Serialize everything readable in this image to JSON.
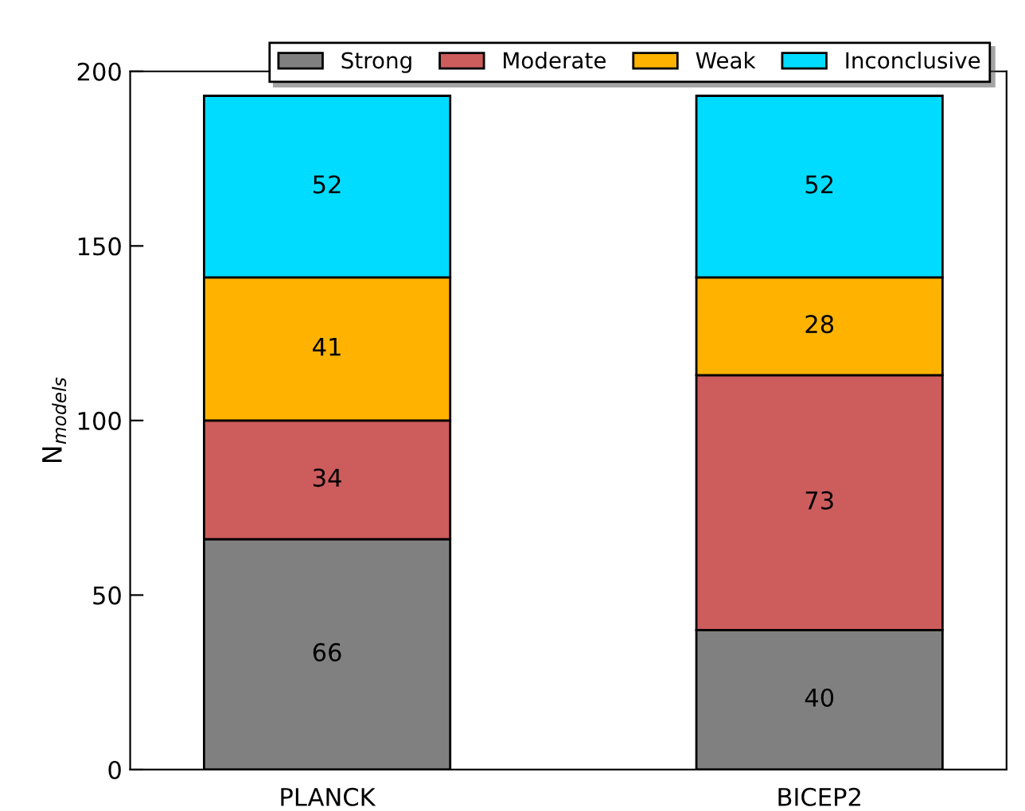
{
  "chart_data": {
    "type": "bar",
    "stacked": true,
    "ylabel": "N$_{models}$",
    "categories": [
      "PLANCK",
      "BICEP2"
    ],
    "series": [
      {
        "name": "Strong",
        "color": "#808080",
        "values": [
          66,
          40
        ]
      },
      {
        "name": "Moderate",
        "color": "#cd5c5c",
        "values": [
          34,
          73
        ]
      },
      {
        "name": "Weak",
        "color": "#ffb300",
        "values": [
          41,
          28
        ]
      },
      {
        "name": "Inconclusive",
        "color": "#00dcff",
        "values": [
          52,
          52
        ]
      }
    ],
    "ylim": [
      0,
      200
    ],
    "yticks": [
      0,
      50,
      100,
      150,
      200
    ],
    "data_labels": true,
    "legend": "top",
    "grid": false
  }
}
